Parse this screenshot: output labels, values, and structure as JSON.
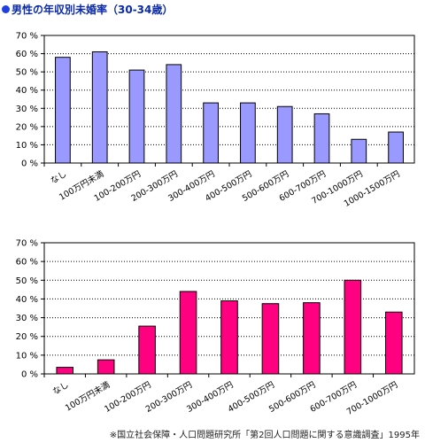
{
  "title": "男性の年収別未婚率（30-34歳）",
  "footnote": "※国立社会保障・人口問題研究所「第2回人口問題に関する意識調査」1995年",
  "colors": {
    "chart1_bar": "#9999ff",
    "chart2_bar": "#ff0080",
    "axis": "#000000"
  },
  "chart_data": [
    {
      "type": "bar",
      "title": "",
      "xlabel": "",
      "ylabel": "",
      "ylim": [
        0,
        70
      ],
      "yticks": [
        "0 %",
        "10 %",
        "20 %",
        "30 %",
        "40 %",
        "50 %",
        "60 %",
        "70 %"
      ],
      "grid": true,
      "categories": [
        "なし",
        "100万円未満",
        "100-200万円",
        "200-300万円",
        "300-400万円",
        "400-500万円",
        "500-600万円",
        "600-700万円",
        "700-1000万円",
        "1000-1500万円"
      ],
      "values": [
        58,
        61,
        51,
        54,
        33,
        33,
        31,
        27,
        13,
        17
      ]
    },
    {
      "type": "bar",
      "title": "",
      "xlabel": "",
      "ylabel": "",
      "ylim": [
        0,
        70
      ],
      "yticks": [
        "0 %",
        "10 %",
        "20 %",
        "30 %",
        "40 %",
        "50 %",
        "60 %",
        "70 %"
      ],
      "grid": true,
      "categories": [
        "なし",
        "100万円未満",
        "100-200万円",
        "200-300万円",
        "300-400万円",
        "400-500万円",
        "500-600万円",
        "600-700万円",
        "700-1000万円"
      ],
      "values": [
        3.5,
        7.5,
        25.5,
        44,
        39,
        37.5,
        38,
        50,
        33
      ]
    }
  ]
}
